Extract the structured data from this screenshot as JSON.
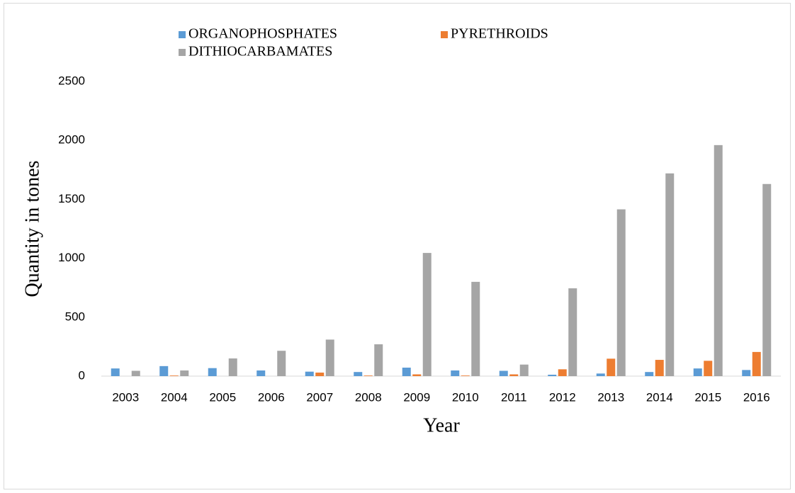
{
  "chart_data": {
    "type": "bar",
    "y_label": "Quantity in tones",
    "x_label": "Year",
    "categories": [
      "2003",
      "2004",
      "2005",
      "2006",
      "2007",
      "2008",
      "2009",
      "2010",
      "2011",
      "2012",
      "2013",
      "2014",
      "2015",
      "2016"
    ],
    "series": [
      {
        "name": "ORGANOPHOSPHATES",
        "color": "#5b9bd5",
        "values": [
          65,
          85,
          68,
          48,
          38,
          35,
          72,
          48,
          45,
          12,
          22,
          35,
          65,
          52
        ]
      },
      {
        "name": "PYRETHROIDS",
        "color": "#ed7d31",
        "values": [
          0,
          5,
          0,
          0,
          30,
          5,
          15,
          5,
          15,
          58,
          148,
          138,
          130,
          205
        ]
      },
      {
        "name": "DITHIOCARBAMATES",
        "color": "#a5a5a5",
        "values": [
          45,
          48,
          150,
          215,
          310,
          270,
          1045,
          800,
          98,
          745,
          1415,
          1720,
          1960,
          1630
        ]
      }
    ],
    "ylim": [
      0,
      2500
    ],
    "yticks": [
      0,
      500,
      1000,
      1500,
      2000,
      2500
    ],
    "grid": false,
    "legend": "top"
  }
}
